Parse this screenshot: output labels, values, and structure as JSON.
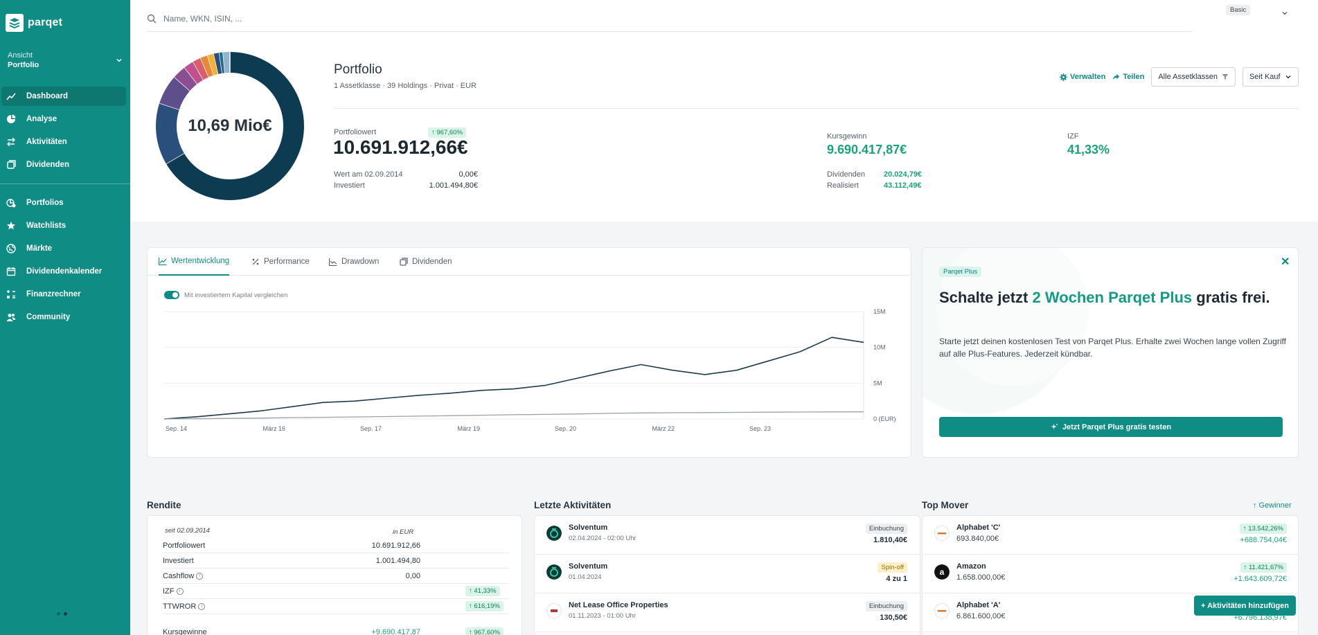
{
  "app": {
    "logo_text": "parqet",
    "brand_color": "#0f8c84"
  },
  "sidebar": {
    "view_label": "Ansicht",
    "view_value": "Portfolio",
    "items": [
      {
        "label": "Dashboard",
        "icon": "dashboard-icon"
      },
      {
        "label": "Analyse",
        "icon": "pie-chart-icon"
      },
      {
        "label": "Aktivitäten",
        "icon": "arrows-swap-icon"
      },
      {
        "label": "Dividenden",
        "icon": "coins-icon"
      },
      {
        "label": "Portfolios",
        "icon": "portfolios-icon"
      },
      {
        "label": "Watchlists",
        "icon": "star-icon"
      },
      {
        "label": "Märkte",
        "icon": "globe-icon"
      },
      {
        "label": "Dividendenkalender",
        "icon": "calendar-icon"
      },
      {
        "label": "Finanzrechner",
        "icon": "calculator-icon"
      },
      {
        "label": "Community",
        "icon": "users-icon"
      }
    ]
  },
  "search": {
    "placeholder": "Name, WKN, ISIN, ..."
  },
  "plan_badge": "Basic",
  "portfolio": {
    "donut_label": "10,69 Mio€",
    "title": "Portfolio",
    "meta": "1 Assetklasse · 39 Holdings · Privat · EUR",
    "actions": {
      "manage": "Verwalten",
      "share": "Teilen",
      "filter": "Alle Assetklassen",
      "period": "Seit Kauf"
    },
    "value_label": "Portfoliowert",
    "value_badge": "↑ 967,60%",
    "value": "10.691.912,66€",
    "start_label": "Wert am 02.09.2014",
    "start_value": "0,00€",
    "invested_label": "Investiert",
    "invested_value": "1.001.494,80€",
    "gain_label": "Kursgewinn",
    "gain_value": "9.690.417,87€",
    "dividends_label": "Dividenden",
    "dividends_value": "20.024,79€",
    "realized_label": "Realisiert",
    "realized_value": "43.112,49€",
    "izf_label": "IZF",
    "izf_value": "41,33%"
  },
  "chart_tabs": [
    "Wertentwicklung",
    "Performance",
    "Drawdown",
    "Dividenden"
  ],
  "compare_toggle_label": "Mit investiertem Kapital vergleichen",
  "chart_data": {
    "type": "line",
    "x_tick_labels": [
      "Sep. 14",
      "März 16",
      "Sep. 17",
      "März 19",
      "Sep. 20",
      "März 22",
      "Sep. 23"
    ],
    "y_tick_labels": [
      "15M",
      "10M",
      "5M",
      "0 (EUR)"
    ],
    "ylim": [
      0,
      15000000
    ],
    "x": [
      "2014-09",
      "2015-03",
      "2015-09",
      "2016-03",
      "2016-09",
      "2017-03",
      "2017-09",
      "2018-03",
      "2018-09",
      "2019-03",
      "2019-09",
      "2020-03",
      "2020-09",
      "2021-03",
      "2021-09",
      "2022-03",
      "2022-06",
      "2022-09",
      "2023-03",
      "2023-09",
      "2024-01",
      "2024-04",
      "2024-06"
    ],
    "series": [
      {
        "values": [
          0,
          300000,
          700000,
          1100000,
          1700000,
          2300000,
          2500000,
          2900000,
          3300000,
          3600000,
          4000000,
          4200000,
          4700000,
          5700000,
          6700000,
          7600000,
          6800000,
          6200000,
          6800000,
          8100000,
          9400000,
          11400000,
          10700000
        ]
      },
      {
        "values": [
          0,
          30000,
          80000,
          120000,
          180000,
          230000,
          280000,
          340000,
          400000,
          450000,
          520000,
          590000,
          640000,
          700000,
          780000,
          840000,
          870000,
          890000,
          920000,
          950000,
          970000,
          990000,
          1001494
        ]
      }
    ]
  },
  "promo": {
    "badge": "Parqet Plus",
    "title_before": "Schalte jetzt ",
    "title_highlight": "2 Wochen Parqet Plus",
    "title_after": " gratis frei.",
    "text": "Starte jetzt deinen kostenlosen Test von Parqet Plus. Erhalte zwei Wochen lange vollen Zugriff auf alle Plus-Features. Jederzeit kündbar.",
    "button": "Jetzt Parqet Plus gratis testen",
    "close": "✕"
  },
  "rendite": {
    "title": "Rendite",
    "since": "seit 02.09.2014",
    "currency": "in EUR",
    "rows": [
      {
        "label": "Portfoliowert",
        "value": "10.691.912,66",
        "badge": ""
      },
      {
        "label": "Investiert",
        "value": "1.001.494,80",
        "badge": ""
      },
      {
        "label": "Cashflow",
        "value": "0,00",
        "badge": ""
      },
      {
        "label": "IZF",
        "value": "",
        "badge": "↑ 41,33%"
      },
      {
        "label": "TTWROR",
        "value": "",
        "badge": "↑ 616,19%"
      },
      {
        "label": "Kursgewinne",
        "value": "+9.690.417,87",
        "badge": "↑ 967,60%"
      }
    ]
  },
  "activities": {
    "title": "Letzte Aktivitäten",
    "items": [
      {
        "name": "Solventum",
        "date": "02.04.2024 - 02:00 Uhr",
        "type": "Einbuchung",
        "value": "1.810,40€"
      },
      {
        "name": "Solventum",
        "date": "01.04.2024",
        "type": "Spin-off",
        "value": "4 zu 1"
      },
      {
        "name": "Net Lease Office Properties",
        "date": "01.11.2023 - 01:00 Uhr",
        "type": "Einbuchung",
        "value": "130,50€"
      }
    ]
  },
  "movers": {
    "title": "Top Mover",
    "toggle": "↑ Gewinner",
    "items": [
      {
        "name": "Alphabet 'C'",
        "price": "693.840,00€",
        "badge": "↑ 13.542,26%",
        "change": "+688.754,04€"
      },
      {
        "name": "Amazon",
        "price": "1.658.000,00€",
        "badge": "↑ 11.421,67%",
        "change": "+1.643.609,72€"
      },
      {
        "name": "Alphabet 'A'",
        "price": "6.861.600,00€",
        "badge": "",
        "change": "+6.796.138,97€"
      }
    ]
  },
  "fab": "+ Aktivitäten hinzufügen"
}
